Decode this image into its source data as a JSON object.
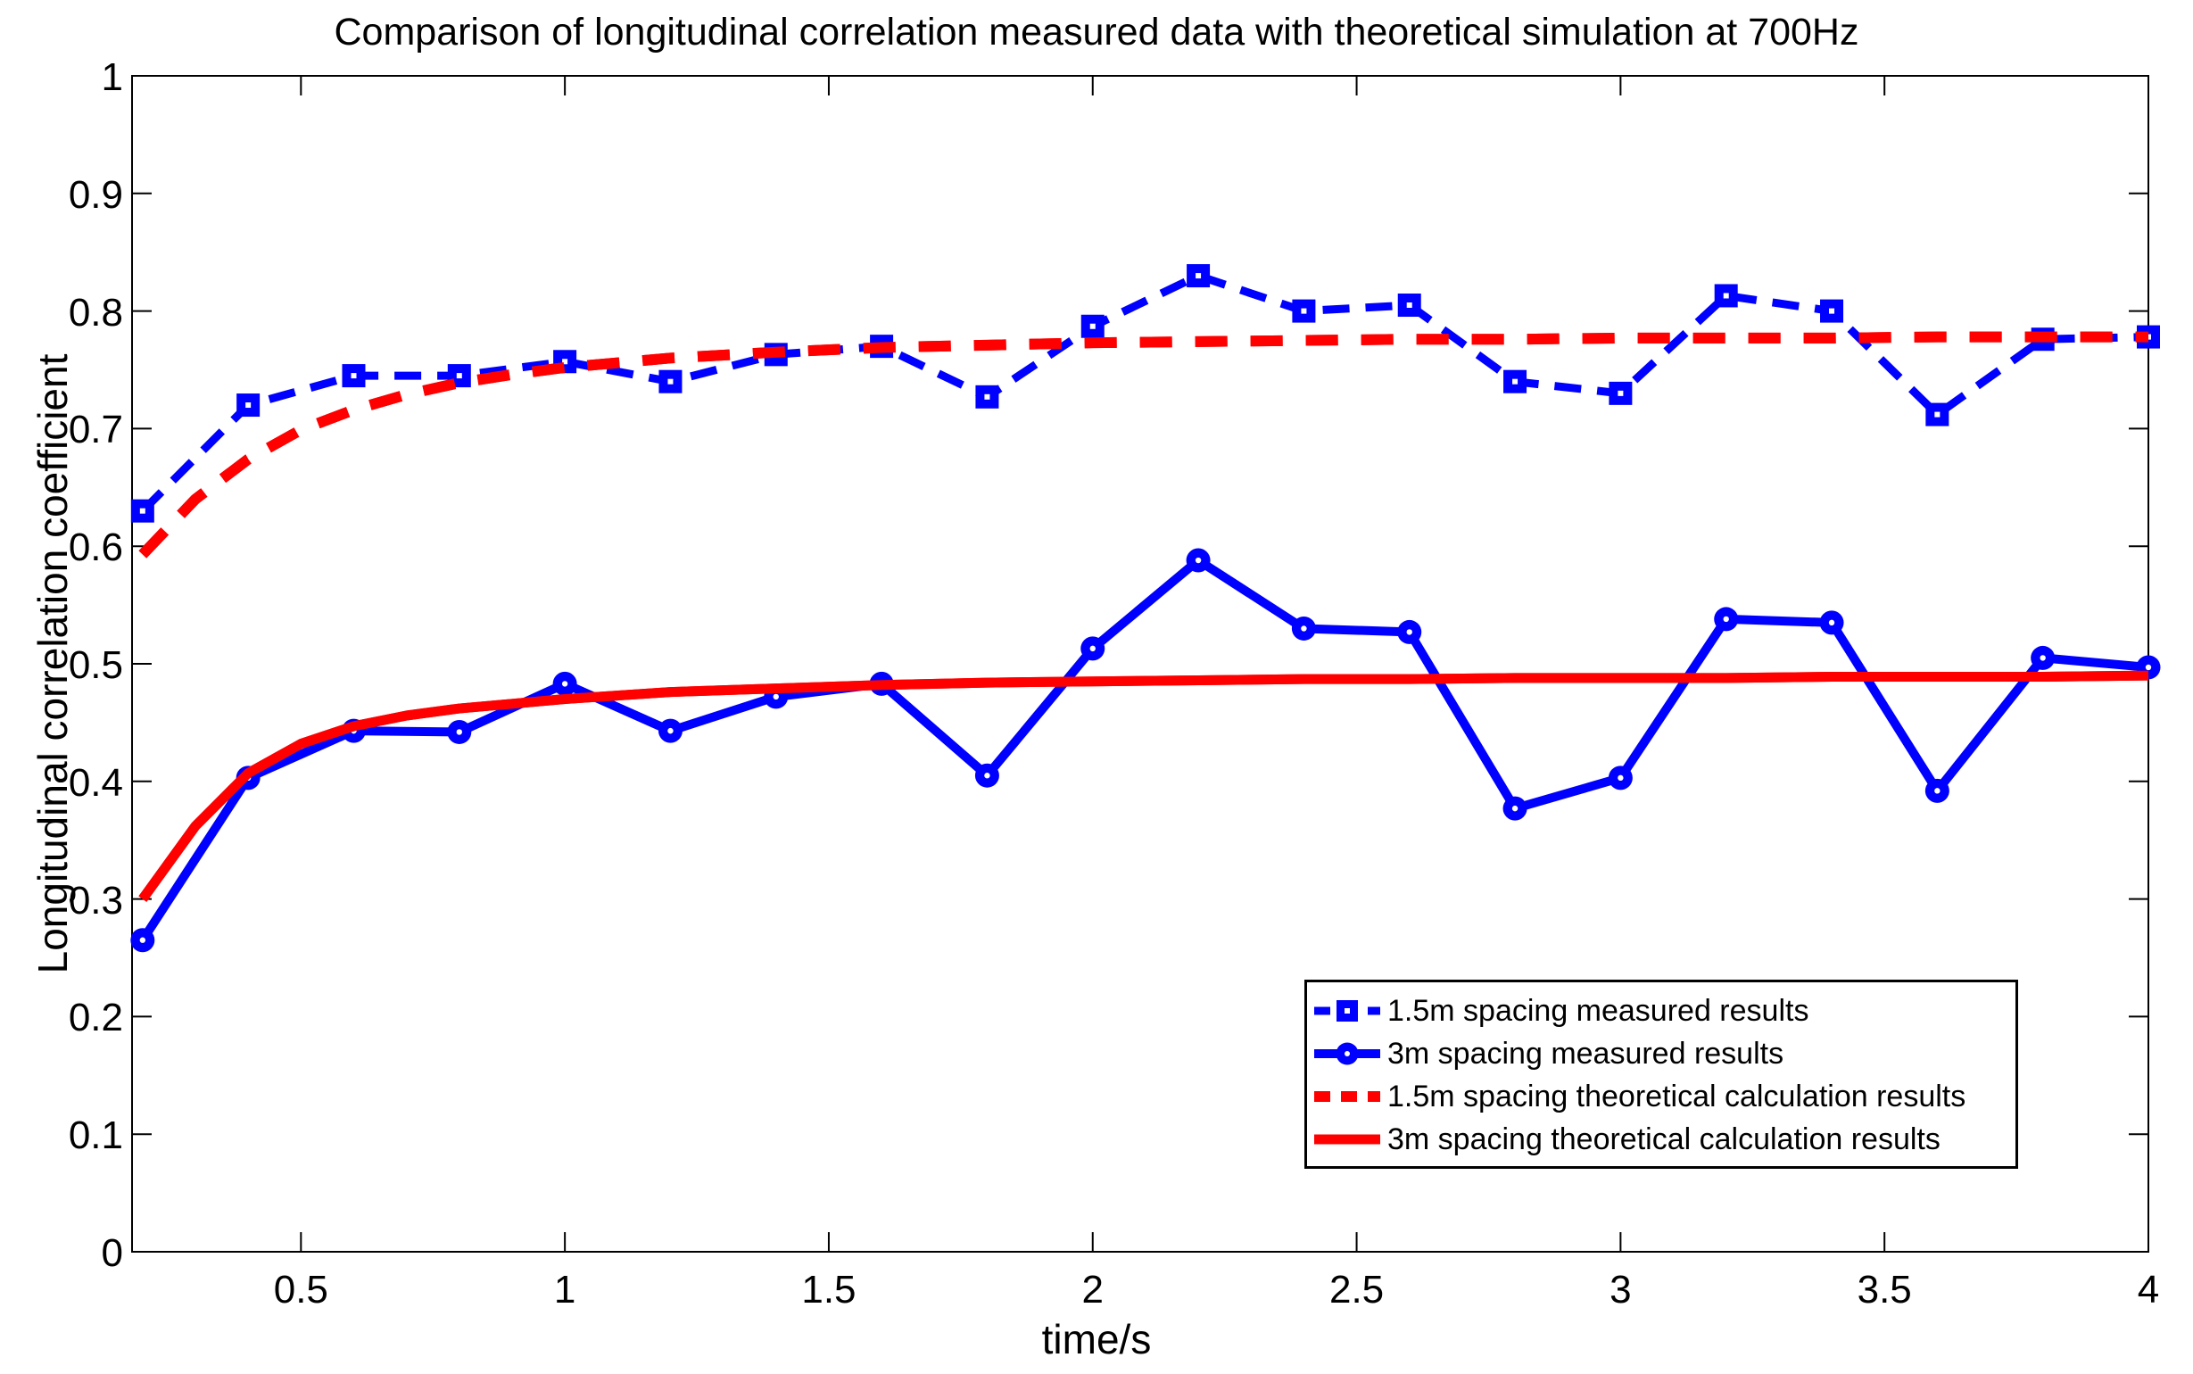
{
  "title": "Comparison of longitudinal correlation measured data with theoretical simulation at 700Hz",
  "x_axis": {
    "label": "time/s",
    "min": 0.18,
    "max": 4,
    "tick_values": [
      0.5,
      1,
      1.5,
      2,
      2.5,
      3,
      3.5,
      4
    ],
    "tick_labels": [
      "0.5",
      "1",
      "1.5",
      "2",
      "2.5",
      "3",
      "3.5",
      "4"
    ]
  },
  "y_axis": {
    "label": "Longitudinal correlation coefficient",
    "min": 0,
    "max": 1,
    "tick_values": [
      0,
      0.1,
      0.2,
      0.3,
      0.4,
      0.5,
      0.6,
      0.7,
      0.8,
      0.9,
      1
    ],
    "tick_labels": [
      "0",
      "0.1",
      "0.2",
      "0.3",
      "0.4",
      "0.5",
      "0.6",
      "0.7",
      "0.8",
      "0.9",
      "1"
    ]
  },
  "colors": {
    "measured": "#0000ff",
    "theoretical": "#ff0000",
    "axis": "#000000",
    "background": "#ffffff"
  },
  "chart_data": {
    "type": "line",
    "title": "Comparison of longitudinal correlation measured data with theoretical simulation at 700Hz",
    "xlabel": "time/s",
    "ylabel": "Longitudinal correlation coefficient",
    "xlim": [
      0.18,
      4
    ],
    "ylim": [
      0,
      1
    ],
    "grid": false,
    "legend_position": "inside lower right",
    "series": [
      {
        "name": "1.5m spacing measured results",
        "color": "#0000ff",
        "line_style": "dashed",
        "marker": "square",
        "x": [
          0.2,
          0.4,
          0.6,
          0.8,
          1.0,
          1.2,
          1.4,
          1.6,
          1.8,
          2.0,
          2.2,
          2.4,
          2.6,
          2.8,
          3.0,
          3.2,
          3.4,
          3.6,
          3.8,
          4.0
        ],
        "y": [
          0.63,
          0.72,
          0.745,
          0.745,
          0.757,
          0.74,
          0.763,
          0.77,
          0.727,
          0.787,
          0.83,
          0.8,
          0.805,
          0.74,
          0.73,
          0.813,
          0.8,
          0.712,
          0.776,
          0.778
        ]
      },
      {
        "name": "3m spacing measured results",
        "color": "#0000ff",
        "line_style": "solid",
        "marker": "circle",
        "x": [
          0.2,
          0.4,
          0.6,
          0.8,
          1.0,
          1.2,
          1.4,
          1.6,
          1.8,
          2.0,
          2.2,
          2.4,
          2.6,
          2.8,
          3.0,
          3.2,
          3.4,
          3.6,
          3.8,
          4.0
        ],
        "y": [
          0.265,
          0.403,
          0.443,
          0.442,
          0.483,
          0.443,
          0.472,
          0.483,
          0.405,
          0.513,
          0.588,
          0.53,
          0.527,
          0.377,
          0.403,
          0.538,
          0.535,
          0.392,
          0.505,
          0.497
        ]
      },
      {
        "name": "1.5m spacing theoretical calculation results",
        "color": "#ff0000",
        "line_style": "dashed",
        "marker": "none",
        "x": [
          0.2,
          0.3,
          0.4,
          0.5,
          0.6,
          0.7,
          0.8,
          0.9,
          1.0,
          1.2,
          1.4,
          1.6,
          1.8,
          2.0,
          2.2,
          2.4,
          2.6,
          2.8,
          3.0,
          3.2,
          3.4,
          3.6,
          3.8,
          4.0
        ],
        "y": [
          0.593,
          0.64,
          0.674,
          0.699,
          0.716,
          0.729,
          0.739,
          0.746,
          0.752,
          0.76,
          0.765,
          0.769,
          0.771,
          0.773,
          0.774,
          0.775,
          0.776,
          0.776,
          0.777,
          0.777,
          0.777,
          0.778,
          0.778,
          0.778
        ]
      },
      {
        "name": "3m spacing theoretical calculation results",
        "color": "#ff0000",
        "line_style": "solid",
        "marker": "none",
        "x": [
          0.2,
          0.3,
          0.4,
          0.5,
          0.6,
          0.7,
          0.8,
          0.9,
          1.0,
          1.2,
          1.4,
          1.6,
          1.8,
          2.0,
          2.2,
          2.4,
          2.6,
          2.8,
          3.0,
          3.2,
          3.4,
          3.6,
          3.8,
          4.0
        ],
        "y": [
          0.3,
          0.362,
          0.407,
          0.432,
          0.447,
          0.456,
          0.462,
          0.466,
          0.47,
          0.476,
          0.479,
          0.482,
          0.484,
          0.485,
          0.486,
          0.487,
          0.487,
          0.488,
          0.488,
          0.488,
          0.489,
          0.489,
          0.489,
          0.49
        ]
      }
    ]
  }
}
